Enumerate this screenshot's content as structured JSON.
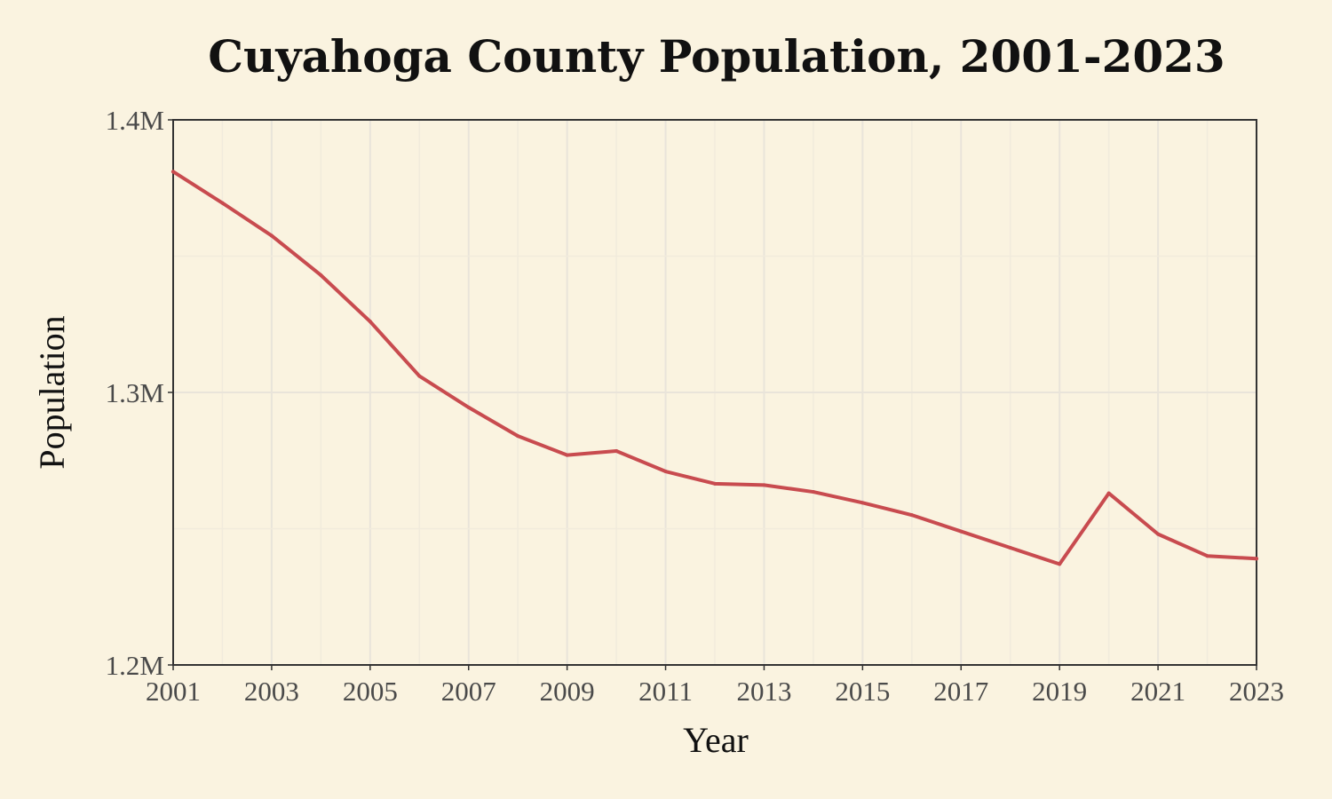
{
  "chart_data": {
    "type": "line",
    "title": "Cuyahoga County Population, 2001-2023",
    "xlabel": "Year",
    "ylabel": "Population",
    "xlim": [
      2001,
      2023
    ],
    "ylim": [
      1200000,
      1400000
    ],
    "x_ticks": [
      "2001",
      "2003",
      "2005",
      "2007",
      "2009",
      "2011",
      "2013",
      "2015",
      "2017",
      "2019",
      "2021",
      "2023"
    ],
    "y_ticks": [
      "1.2M",
      "1.3M",
      "1.4M"
    ],
    "grid": true,
    "line_color": "#c84b4f",
    "series": [
      {
        "x": [
          2001,
          2002,
          2003,
          2004,
          2005,
          2006,
          2007,
          2008,
          2009,
          2010,
          2011,
          2012,
          2013,
          2014,
          2015,
          2016,
          2017,
          2018,
          2019,
          2020,
          2021,
          2022,
          2023
        ],
        "values": [
          1381000,
          1369500,
          1357500,
          1343000,
          1326000,
          1306000,
          1294500,
          1284000,
          1277000,
          1278500,
          1271000,
          1266500,
          1266000,
          1263500,
          1259500,
          1255000,
          1249000,
          1243000,
          1237000,
          1263000,
          1248000,
          1240000,
          1239000
        ]
      }
    ]
  }
}
